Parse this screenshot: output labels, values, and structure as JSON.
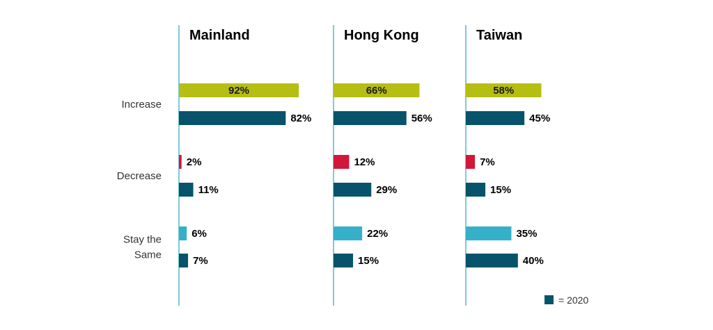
{
  "chart_data": {
    "type": "bar",
    "orientation": "horizontal",
    "categories": [
      "Increase",
      "Decrease",
      "Stay the Same"
    ],
    "category_lines": [
      [
        "Increase"
      ],
      [
        "Decrease"
      ],
      [
        "Stay the",
        "Same"
      ]
    ],
    "panels": [
      {
        "title": "Mainland",
        "current": [
          92,
          2,
          6
        ],
        "y2020": [
          82,
          11,
          7
        ],
        "current_labels": [
          "92%",
          "2%",
          "6%"
        ],
        "y2020_labels": [
          "82%",
          "11%",
          "7%"
        ]
      },
      {
        "title": "Hong Kong",
        "current": [
          66,
          12,
          22
        ],
        "y2020": [
          56,
          29,
          15
        ],
        "current_labels": [
          "66%",
          "12%",
          "22%"
        ],
        "y2020_labels": [
          "56%",
          "29%",
          "15%"
        ]
      },
      {
        "title": "Taiwan",
        "current": [
          58,
          7,
          35
        ],
        "y2020": [
          45,
          15,
          40
        ],
        "current_labels": [
          "58%",
          "7%",
          "35%"
        ],
        "y2020_labels": [
          "45%",
          "15%",
          "40%"
        ]
      }
    ],
    "category_colors": [
      "#b5be12",
      "#d3173a",
      "#36b0c9"
    ],
    "color_2020": "#07536b",
    "axis_color": "#2aa7bd",
    "legend": {
      "label": "= 2020",
      "position": "bottom-right"
    },
    "xlim": [
      0,
      100
    ],
    "grid": false
  }
}
